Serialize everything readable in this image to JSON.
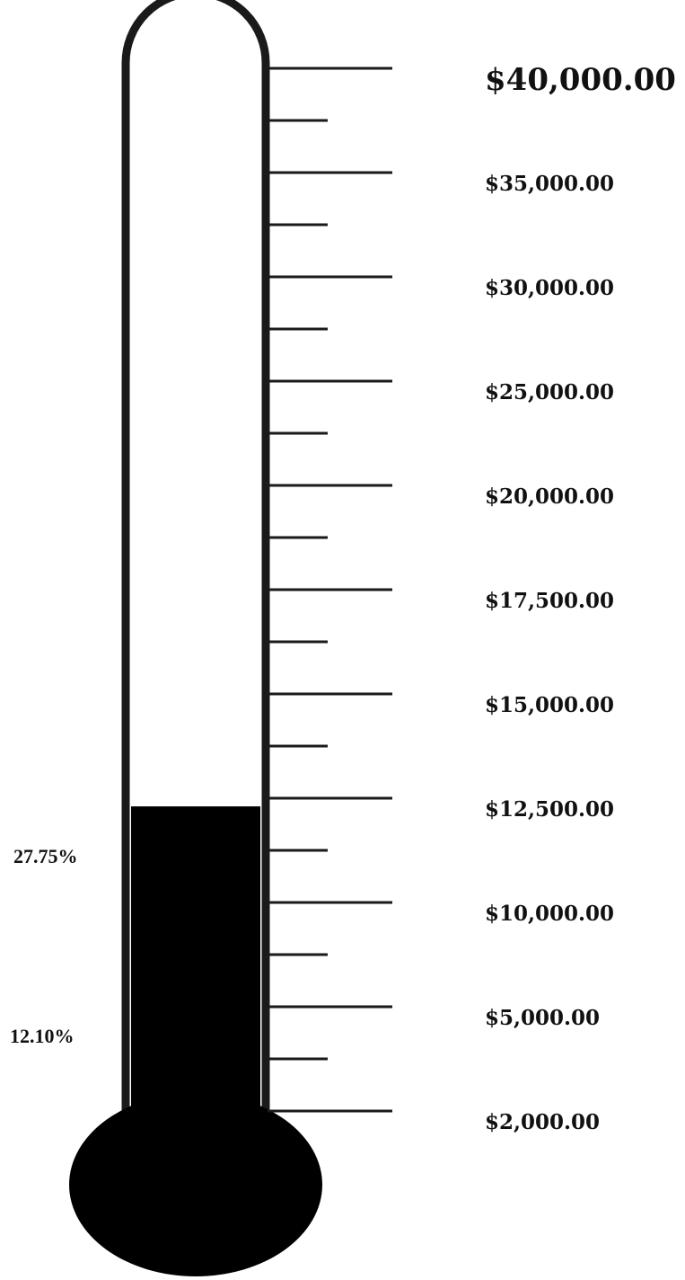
{
  "colors": {
    "outline": "#1a1a1a",
    "fill": "#000000",
    "background": "#ffffff"
  },
  "chart_data": {
    "type": "thermometer",
    "title": "",
    "fill_level_percent": 27.75,
    "tick_labels": [
      "$40,000.00",
      "$35,000.00",
      "$30,000.00",
      "$25,000.00",
      "$20,000.00",
      "$17,500.00",
      "$15,000.00",
      "$12,500.00",
      "$10,000.00",
      "$5,000.00",
      "$2,000.00"
    ],
    "tick_values": [
      40000,
      35000,
      30000,
      25000,
      20000,
      17500,
      15000,
      12500,
      10000,
      5000,
      2000
    ],
    "minor_ticks_between": 1,
    "annotations": [
      {
        "text": "27.75%",
        "percent": 27.75
      },
      {
        "text": "12.10%",
        "percent": 12.1
      }
    ]
  }
}
